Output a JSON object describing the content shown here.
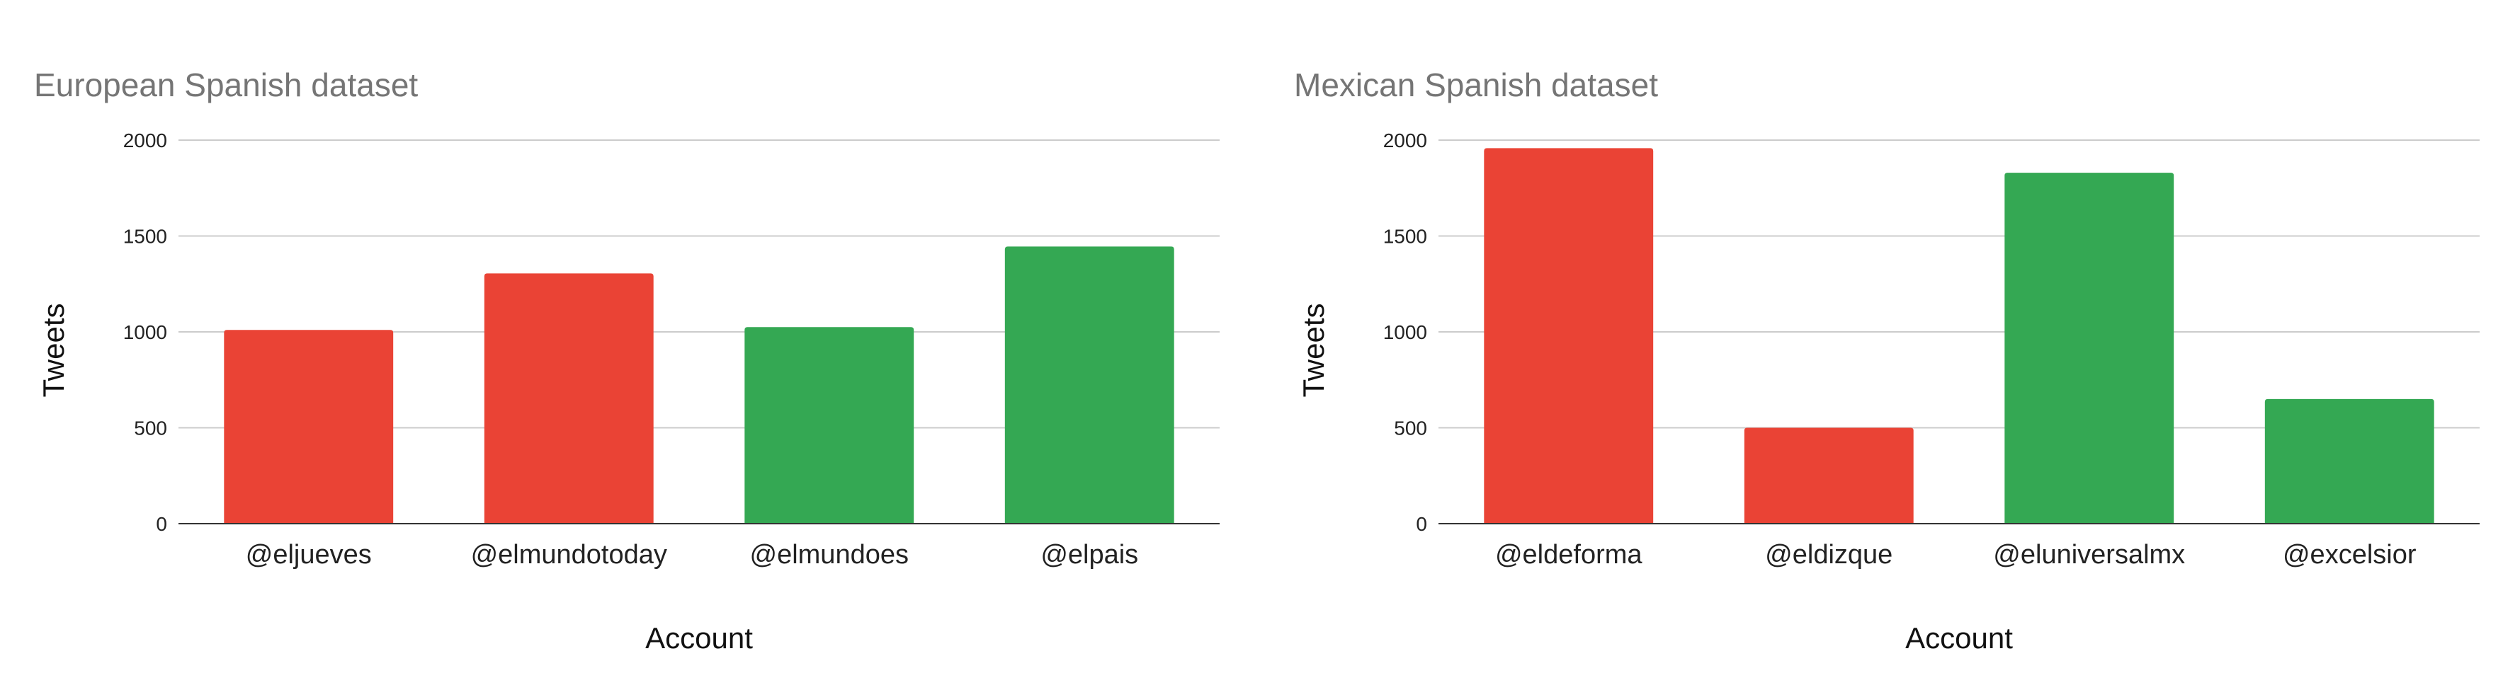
{
  "chart_data": [
    {
      "type": "bar",
      "title": "European Spanish dataset",
      "xlabel": "Account",
      "ylabel": "Tweets",
      "categories": [
        "@eljueves",
        "@elmundotoday",
        "@elmundoes",
        "@elpais"
      ],
      "values": [
        1010,
        1305,
        1025,
        1445
      ],
      "bar_colors": [
        "#ea4335",
        "#ea4335",
        "#34a853",
        "#34a853"
      ],
      "ylim": [
        0,
        2000
      ],
      "yticks": [
        "0",
        "500",
        "1000",
        "1500",
        "2000"
      ],
      "grid": true
    },
    {
      "type": "bar",
      "title": "Mexican Spanish dataset",
      "xlabel": "Account",
      "ylabel": "Tweets",
      "categories": [
        "@eldeforma",
        "@eldizque",
        "@eluniversalmx",
        "@excelsior"
      ],
      "values": [
        1958,
        500,
        1830,
        650
      ],
      "bar_colors": [
        "#ea4335",
        "#ea4335",
        "#34a853",
        "#34a853"
      ],
      "ylim": [
        0,
        2000
      ],
      "yticks": [
        "0",
        "500",
        "1000",
        "1500",
        "2000"
      ],
      "grid": true
    }
  ]
}
